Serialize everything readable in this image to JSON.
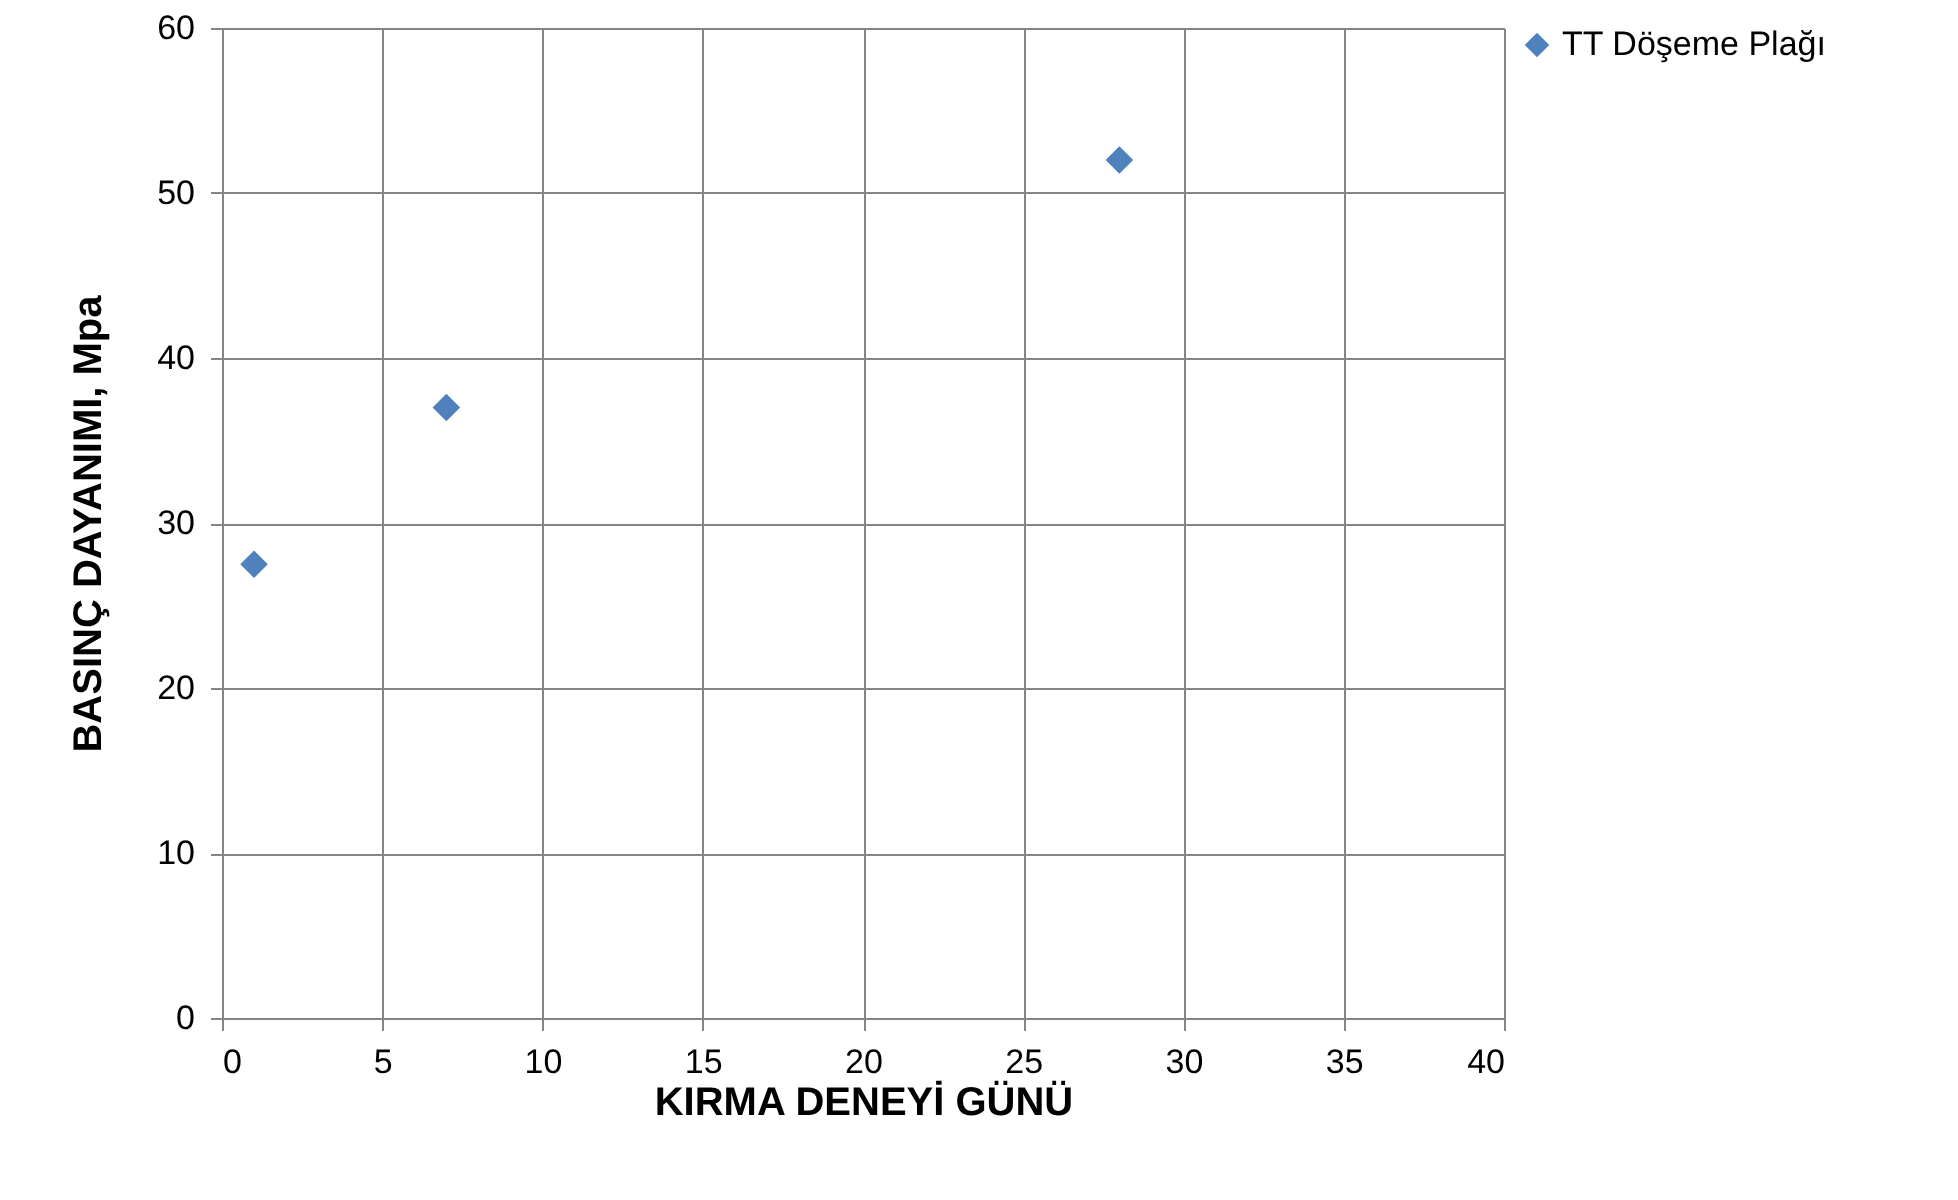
{
  "chart_data": {
    "type": "scatter",
    "xlabel": "KIRMA DENEYİ GÜNÜ",
    "ylabel": "BASINÇ DAYANIMI, Mpa",
    "x": [
      1,
      7,
      28
    ],
    "series": [
      {
        "name": "TT Döşeme Plağı",
        "color": "#4f81bd",
        "values": [
          27.5,
          37,
          52
        ]
      }
    ],
    "xlim": [
      0,
      40
    ],
    "xticks": [
      0,
      5,
      10,
      15,
      20,
      25,
      30,
      35,
      40
    ],
    "ylim": [
      0,
      60
    ],
    "yticks": [
      0,
      10,
      20,
      30,
      40,
      50,
      60
    ],
    "grid": true,
    "legend": "right",
    "marker": "diamond"
  }
}
